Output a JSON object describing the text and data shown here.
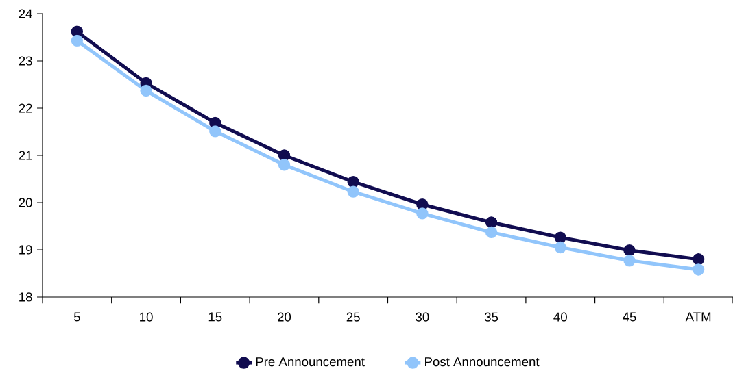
{
  "chart_data": {
    "type": "line",
    "categories": [
      "5",
      "10",
      "15",
      "20",
      "25",
      "30",
      "35",
      "40",
      "45",
      "ATM"
    ],
    "series": [
      {
        "name": "Pre Announcement",
        "color": "#110c50",
        "values": [
          23.62,
          22.53,
          21.69,
          21.0,
          20.44,
          19.96,
          19.58,
          19.26,
          18.99,
          18.8
        ]
      },
      {
        "name": "Post Announcement",
        "color": "#91c5fb",
        "values": [
          23.43,
          22.37,
          21.51,
          20.8,
          20.23,
          19.77,
          19.37,
          19.05,
          18.77,
          18.58
        ]
      }
    ],
    "ylim": [
      18,
      24
    ],
    "yticks": [
      18,
      19,
      20,
      21,
      22,
      23,
      24
    ],
    "grid": false,
    "legend": "bottom",
    "marker": "circle",
    "line_style": "solid"
  }
}
